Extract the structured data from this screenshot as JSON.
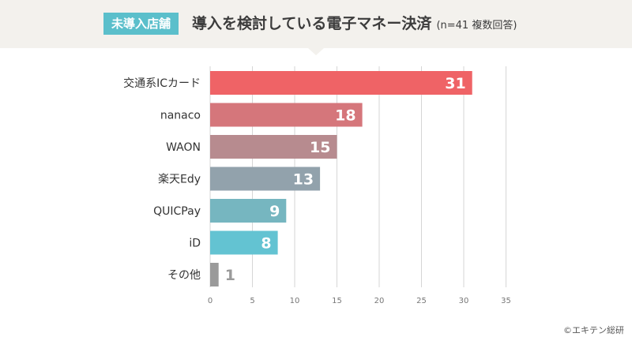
{
  "header": {
    "badge": "未導入店舗",
    "title": "導入を検討している電子マネー決済",
    "subtitle": "(n=41 複数回答)"
  },
  "chart_data": {
    "type": "bar",
    "orientation": "horizontal",
    "categories": [
      "交通系ICカード",
      "nanaco",
      "WAON",
      "楽天Edy",
      "QUICPay",
      "iD",
      "その他"
    ],
    "values": [
      31,
      18,
      15,
      13,
      9,
      8,
      1
    ],
    "colors": [
      "#ef6366",
      "#d5767b",
      "#b78b8f",
      "#92a2ac",
      "#76b6c0",
      "#63c3d2",
      "#9a9a9a"
    ],
    "xlim": [
      0,
      35
    ],
    "xticks": [
      0,
      5,
      10,
      15,
      20,
      25,
      30,
      35
    ],
    "grid": true
  },
  "credit": "©エキテン総研"
}
